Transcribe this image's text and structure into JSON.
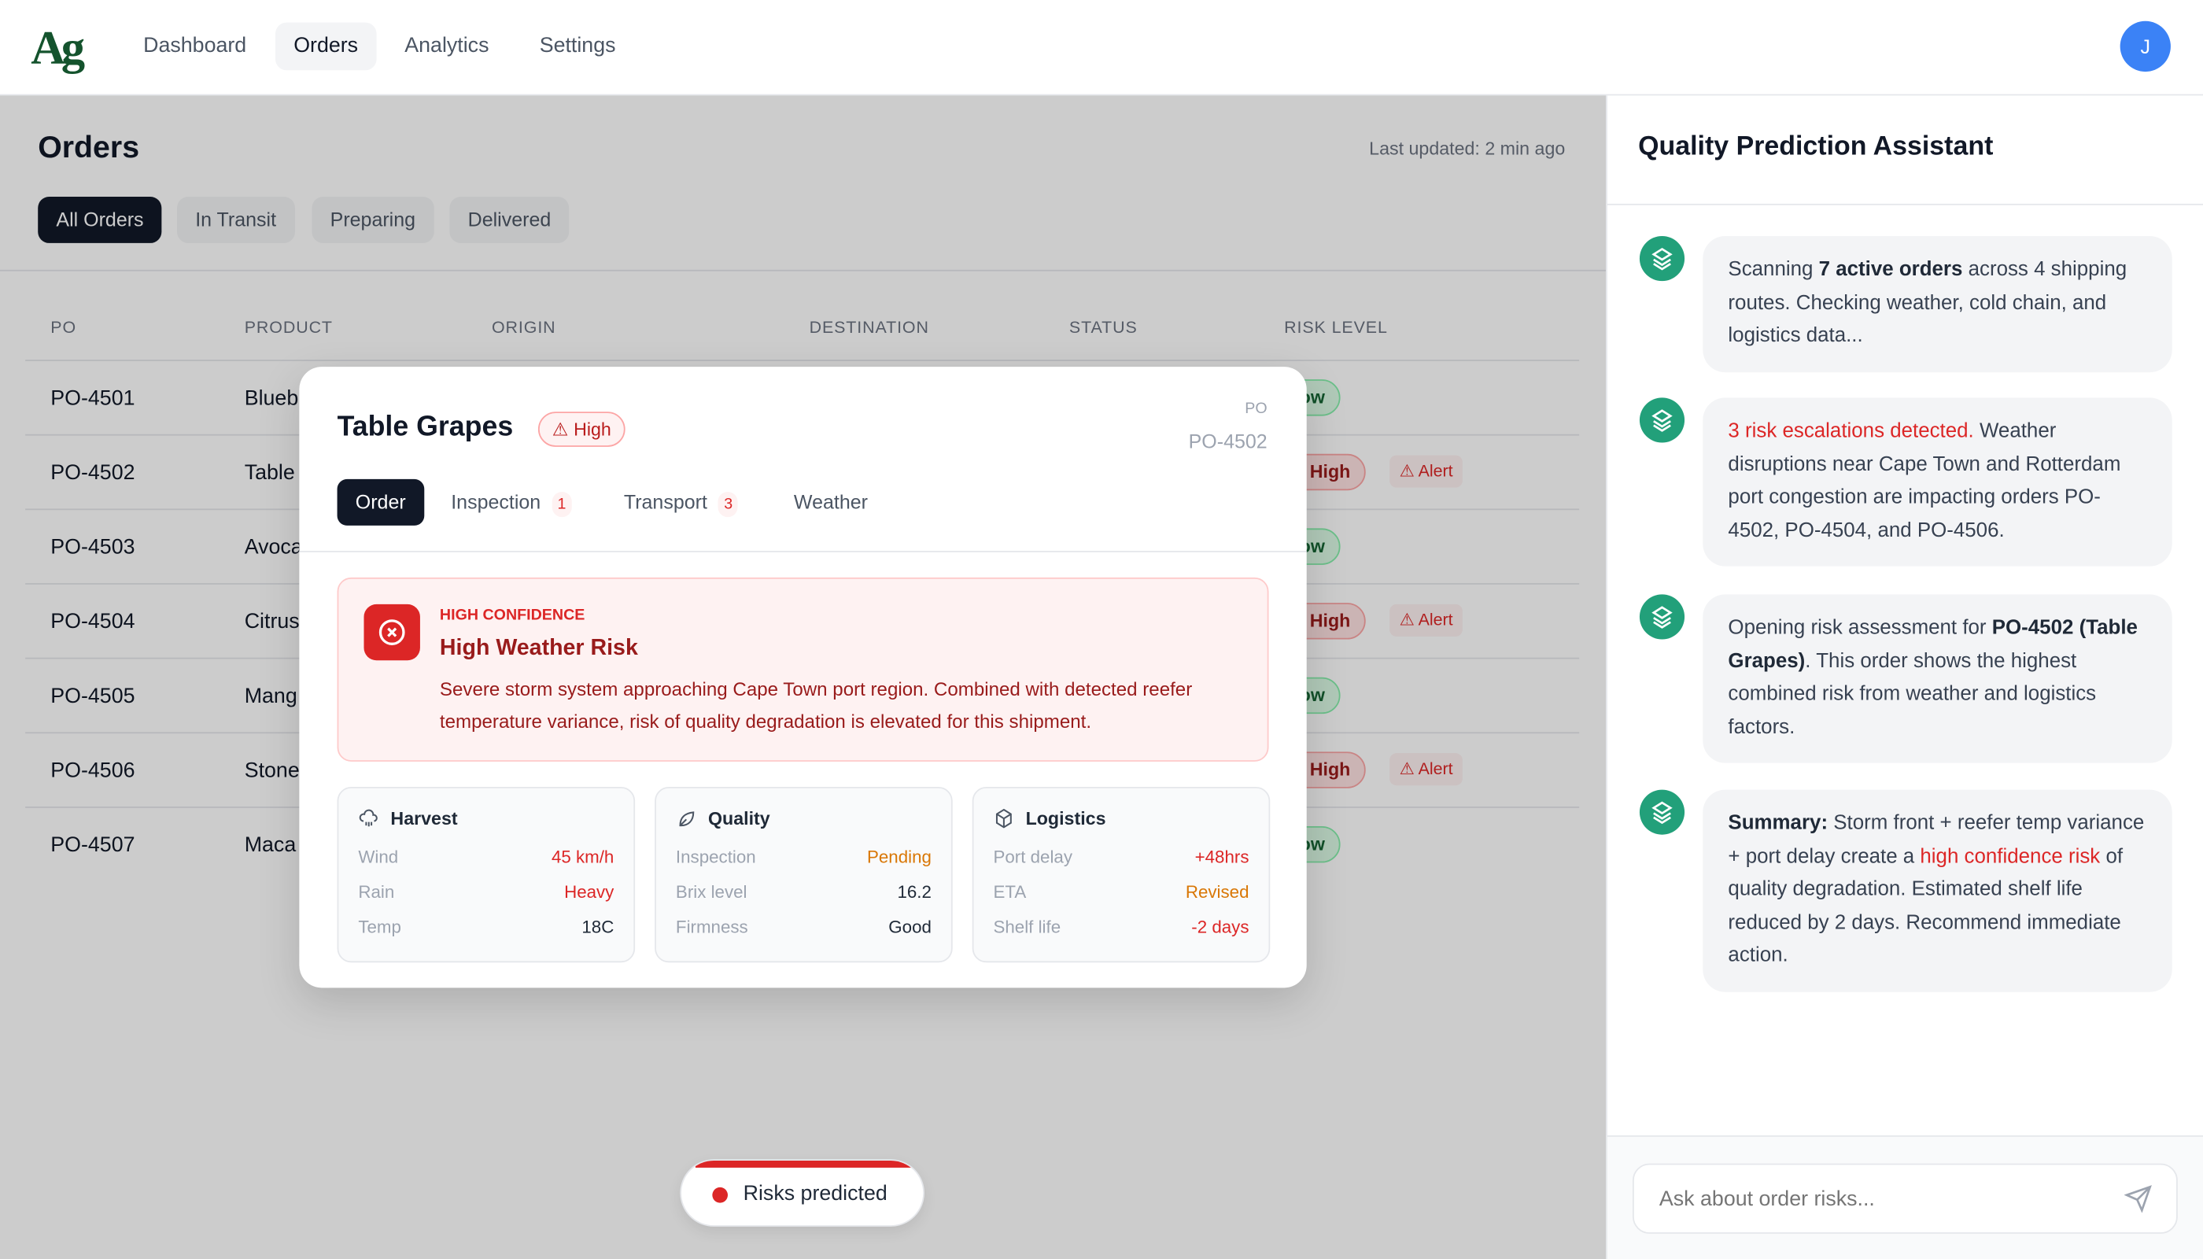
{
  "nav": {
    "logo": "Ag",
    "items": [
      {
        "label": "Dashboard"
      },
      {
        "label": "Orders",
        "active": true
      },
      {
        "label": "Analytics"
      },
      {
        "label": "Settings"
      }
    ],
    "avatar": "J",
    "avatar_color": "#3b82f6"
  },
  "orders": {
    "title": "Orders",
    "last_updated": "Last updated: 2 min ago",
    "filters": [
      {
        "label": "All Orders",
        "active": true
      },
      {
        "label": "In Transit"
      },
      {
        "label": "Preparing"
      },
      {
        "label": "Delivered"
      }
    ],
    "columns": [
      "PO",
      "PRODUCT",
      "ORIGIN",
      "DESTINATION",
      "STATUS",
      "RISK LEVEL"
    ],
    "rows": [
      {
        "po": "PO-4501",
        "product": "Blueb",
        "risk": "Low"
      },
      {
        "po": "PO-4502",
        "product": "Table",
        "risk": "High",
        "alert": "Alert"
      },
      {
        "po": "PO-4503",
        "product": "Avoca",
        "risk": "Low"
      },
      {
        "po": "PO-4504",
        "product": "Citrus",
        "risk": "High",
        "alert": "Alert"
      },
      {
        "po": "PO-4505",
        "product": "Mang",
        "risk": "Low"
      },
      {
        "po": "PO-4506",
        "product": "Stone",
        "risk": "High",
        "alert": "Alert"
      },
      {
        "po": "PO-4507",
        "product": "Maca",
        "risk": "Low"
      }
    ]
  },
  "modal": {
    "title": "Table Grapes",
    "risk_badge": "High",
    "po_label": "PO",
    "po": "PO-4502",
    "tabs": [
      {
        "label": "Order",
        "active": true
      },
      {
        "label": "Inspection",
        "count": "1"
      },
      {
        "label": "Transport",
        "count": "3"
      },
      {
        "label": "Weather"
      }
    ],
    "alert": {
      "confidence": "HIGH CONFIDENCE",
      "title": "High Weather Risk",
      "description": "Severe storm system approaching Cape Town port region. Combined with detected reefer temperature variance, risk of quality degradation is elevated for this shipment."
    },
    "cards": [
      {
        "title": "Harvest",
        "icon": "cloud-rain-icon",
        "rows": [
          {
            "k": "Wind",
            "v": "45 km/h",
            "c": "#dc2626"
          },
          {
            "k": "Rain",
            "v": "Heavy",
            "c": "#dc2626"
          },
          {
            "k": "Temp",
            "v": "18C",
            "c": "#1f2937"
          }
        ]
      },
      {
        "title": "Quality",
        "icon": "leaf-icon",
        "rows": [
          {
            "k": "Inspection",
            "v": "Pending",
            "c": "#d97706"
          },
          {
            "k": "Brix level",
            "v": "16.2",
            "c": "#1f2937"
          },
          {
            "k": "Firmness",
            "v": "Good",
            "c": "#1f2937"
          }
        ]
      },
      {
        "title": "Logistics",
        "icon": "package-icon",
        "rows": [
          {
            "k": "Port delay",
            "v": "+48hrs",
            "c": "#dc2626"
          },
          {
            "k": "ETA",
            "v": "Revised",
            "c": "#d97706"
          },
          {
            "k": "Shelf life",
            "v": "-2 days",
            "c": "#dc2626"
          }
        ]
      }
    ]
  },
  "status_pill": "Risks predicted",
  "assistant": {
    "title": "Quality Prediction Assistant",
    "messages": [
      {
        "parts": [
          [
            "n",
            "Scanning "
          ],
          [
            "b",
            "7 active orders"
          ],
          [
            "n",
            " across 4 shipping routes. Checking weather, cold chain, and logistics data..."
          ]
        ]
      },
      {
        "parts": [
          [
            "r",
            "3 risk escalations detected."
          ],
          [
            "n",
            " Weather disruptions near Cape Town and Rotterdam port congestion are impacting orders PO-4502, PO-4504, and PO-4506."
          ]
        ]
      },
      {
        "parts": [
          [
            "n",
            "Opening risk assessment for "
          ],
          [
            "b",
            "PO-4502 (Table Grapes)"
          ],
          [
            "n",
            ". This order shows the highest combined risk from weather and logistics factors."
          ]
        ]
      },
      {
        "parts": [
          [
            "b",
            "Summary:"
          ],
          [
            "n",
            " Storm front + reefer temp variance + port delay create a "
          ],
          [
            "r",
            "high confidence risk"
          ],
          [
            "n",
            " of quality degradation. Estimated shelf life reduced by 2 days. Recommend immediate action."
          ]
        ]
      }
    ],
    "input_placeholder": "Ask about order risks..."
  },
  "colors": {
    "accent": "#111827",
    "danger": "#dc2626",
    "warning": "#d97706",
    "success": "#166534",
    "assistant": "#22a07a"
  }
}
